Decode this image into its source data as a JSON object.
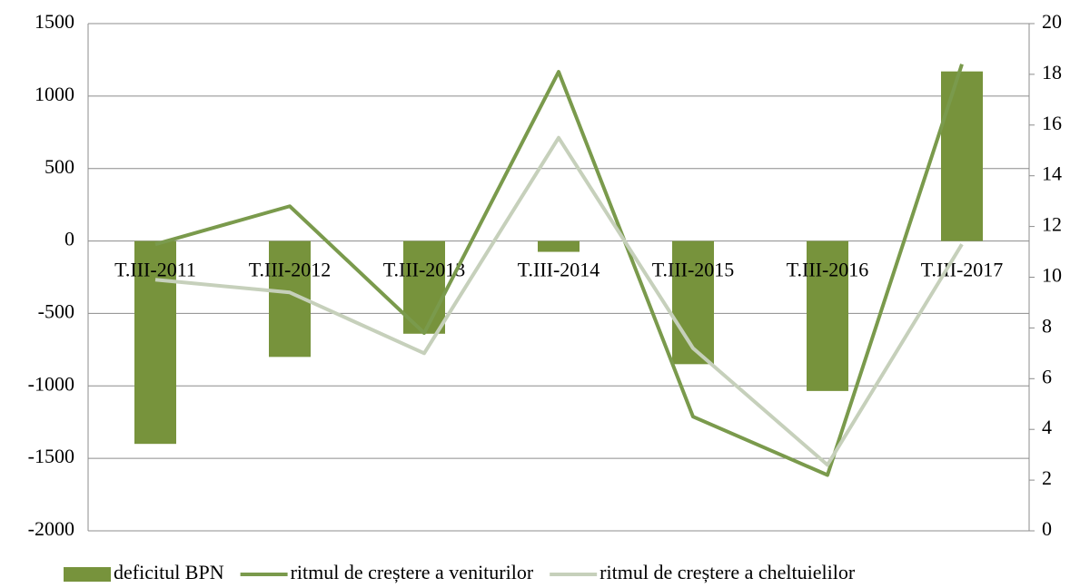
{
  "chart_data": {
    "type": "bar_line",
    "categories": [
      "T.III-2011",
      "T.III-2012",
      "T.III-2013",
      "T.III-2014",
      "T.III-2015",
      "T.III-2016",
      "T.III-2017"
    ],
    "series": [
      {
        "name": "deficitul BPN",
        "type": "bar",
        "color": "#77933c",
        "values": [
          -1400,
          -800,
          -640,
          -75,
          -850,
          -1035,
          1170
        ]
      },
      {
        "name": "ritmul de creștere a veniturilor",
        "type": "line",
        "axis": "y2",
        "color": "#7a9a4c",
        "values": [
          11.3,
          12.8,
          7.8,
          18.1,
          4.5,
          2.2,
          18.4
        ]
      },
      {
        "name": "ritmul de creștere a cheltuielilor",
        "type": "line",
        "axis": "y2",
        "color": "#c6d0bb",
        "values": [
          9.9,
          9.4,
          7.0,
          15.5,
          7.2,
          2.6,
          11.3
        ]
      }
    ],
    "ylim": [
      -2000,
      1500
    ],
    "yticks": [
      -2000,
      -1500,
      -1000,
      -500,
      0,
      500,
      1000,
      1500
    ],
    "y2lim": [
      0,
      20
    ],
    "y2ticks": [
      0,
      2,
      4,
      6,
      8,
      10,
      12,
      14,
      16,
      18,
      20
    ],
    "grid": true,
    "legend": "bottom"
  }
}
